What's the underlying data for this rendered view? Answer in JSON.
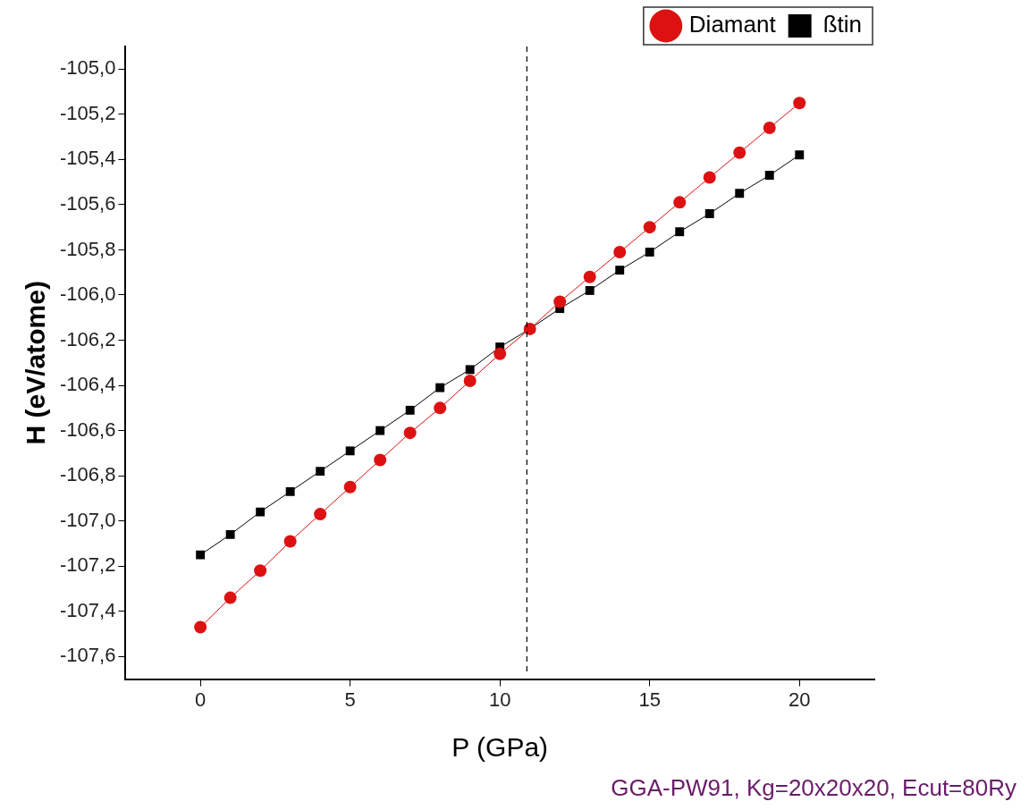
{
  "chart_data": {
    "type": "line",
    "xlabel": "P (GPa)",
    "ylabel": "H (eV/atome)",
    "x": [
      0,
      1,
      2,
      3,
      4,
      5,
      6,
      7,
      8,
      9,
      10,
      11,
      12,
      13,
      14,
      15,
      16,
      17,
      18,
      19,
      20
    ],
    "series": [
      {
        "name": "ßtin",
        "color": "#000000",
        "marker": "square",
        "values": [
          -107.15,
          -107.06,
          -106.96,
          -106.87,
          -106.78,
          -106.69,
          -106.6,
          -106.51,
          -106.41,
          -106.33,
          -106.23,
          -106.15,
          -106.06,
          -105.98,
          -105.89,
          -105.81,
          -105.72,
          -105.64,
          -105.55,
          -105.47,
          -105.38
        ]
      },
      {
        "name": "Diamant",
        "color": "#dd1111",
        "marker": "circle",
        "values": [
          -107.47,
          -107.34,
          -107.22,
          -107.09,
          -106.97,
          -106.85,
          -106.73,
          -106.61,
          -106.5,
          -106.38,
          -106.26,
          -106.15,
          -106.03,
          -105.92,
          -105.81,
          -105.7,
          -105.59,
          -105.48,
          -105.37,
          -105.26,
          -105.15
        ]
      }
    ],
    "xlim": [
      -2.5,
      22.5
    ],
    "xticks": [
      0,
      5,
      10,
      15,
      20
    ],
    "ylim": [
      -107.7,
      -104.9
    ],
    "yticks": [
      {
        "value": -105,
        "label": "-105,0"
      },
      {
        "value": -105.2,
        "label": "-105,2"
      },
      {
        "value": -105.4,
        "label": "-105,4"
      },
      {
        "value": -105.6,
        "label": "-105,6"
      },
      {
        "value": -105.8,
        "label": "-105,8"
      },
      {
        "value": -106,
        "label": "-106,0"
      },
      {
        "value": -106.2,
        "label": "-106,2"
      },
      {
        "value": -106.4,
        "label": "-106,4"
      },
      {
        "value": -106.6,
        "label": "-106,6"
      },
      {
        "value": -106.8,
        "label": "-106,8"
      },
      {
        "value": -107,
        "label": "-107,0"
      },
      {
        "value": -107.2,
        "label": "-107,2"
      },
      {
        "value": -107.4,
        "label": "-107,4"
      },
      {
        "value": -107.6,
        "label": "-107,6"
      }
    ],
    "ref_lines": [
      {
        "axis": "x",
        "value": 10.9,
        "color": "#000000",
        "line_style": "dashed"
      }
    ],
    "grid": false,
    "legend": "top right",
    "line_style": "solid",
    "annotations": [
      "GGA-PW91, Kg=20x20x20, Ecut=80Ry"
    ]
  }
}
